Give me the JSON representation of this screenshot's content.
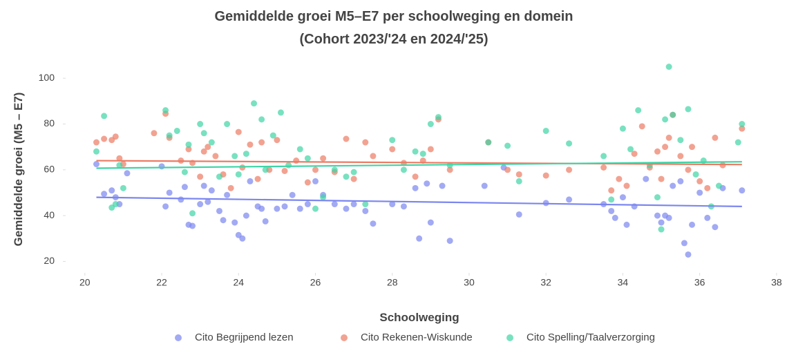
{
  "chart_data": {
    "type": "scatter",
    "title": [
      "Gemiddelde groei M5–E7 per schoolweging en domein",
      "(Cohort 2023/'24 en 2024/'25)"
    ],
    "x_label": "Schoolweging",
    "y_label": "Gemiddelde groei (M5 – E7)",
    "xlim": [
      19.5,
      38.2
    ],
    "ylim": [
      15,
      107
    ],
    "xticks": [
      20,
      22,
      24,
      26,
      28,
      30,
      32,
      34,
      36,
      38
    ],
    "yticks": [
      20,
      40,
      60,
      80,
      100
    ],
    "legend": "bottom",
    "series": [
      {
        "name": "Cito Begrijpend lezen",
        "color": "#7b86f0",
        "x": [
          20.3,
          20.5,
          20.7,
          20.8,
          20.9,
          21.1,
          22,
          22.1,
          22.2,
          22.5,
          22.6,
          22.7,
          22.8,
          23,
          23.1,
          23.2,
          23.3,
          23.5,
          23.6,
          23.7,
          23.9,
          24,
          24.1,
          24.2,
          24.3,
          24.5,
          24.6,
          24.7,
          25,
          25.2,
          25.4,
          25.6,
          25.8,
          26,
          26.2,
          26.5,
          26.8,
          27,
          27.3,
          27.5,
          28,
          28.3,
          28.6,
          28.7,
          28.9,
          29,
          29.3,
          29.5,
          30.4,
          30.9,
          31.3,
          32,
          32.6,
          33.5,
          33.7,
          33.8,
          34,
          34.1,
          34.3,
          34.6,
          34.9,
          35,
          35.1,
          35.2,
          35.3,
          35.5,
          35.6,
          35.7,
          35.8,
          36,
          36.2,
          36.4,
          36.6,
          37.1
        ],
        "values": [
          62.5,
          49.5,
          51,
          48,
          45,
          58.5,
          61.5,
          44,
          50,
          47,
          52.5,
          36,
          35.5,
          45,
          53,
          46,
          51,
          42,
          38,
          49,
          37,
          31.5,
          30,
          40,
          55,
          44,
          43,
          37.5,
          43,
          44,
          49,
          43,
          45,
          55,
          49,
          45,
          43,
          45,
          42,
          36.5,
          45,
          44,
          52,
          30,
          54,
          37,
          53,
          29,
          53,
          61,
          40.5,
          45.5,
          47,
          45,
          42,
          39,
          48,
          36,
          44,
          56,
          40,
          37,
          40,
          39,
          53,
          55,
          28,
          23,
          36,
          50,
          39,
          35,
          52,
          51
        ],
        "trend": {
          "x": [
            20.3,
            37.1
          ],
          "values": [
            48,
            44
          ]
        }
      },
      {
        "name": "Cito Rekenen-Wiskunde",
        "color": "#ec7a63",
        "x": [
          20.3,
          20.5,
          20.7,
          20.8,
          20.9,
          21,
          21.8,
          22.1,
          22.2,
          22.5,
          22.7,
          22.8,
          23,
          23.1,
          23.2,
          23.4,
          23.6,
          23.8,
          24,
          24.1,
          24.3,
          24.5,
          24.6,
          24.8,
          25,
          25.2,
          25.5,
          25.8,
          26,
          26.2,
          26.5,
          26.8,
          27,
          27.3,
          27.5,
          28,
          28.3,
          28.6,
          28.8,
          29,
          29.2,
          29.5,
          30.5,
          31,
          31.3,
          32,
          32.6,
          33.5,
          33.7,
          33.9,
          34.1,
          34.3,
          34.5,
          34.7,
          34.9,
          35,
          35.1,
          35.2,
          35.3,
          35.5,
          35.7,
          35.8,
          36,
          36.2,
          36.4,
          36.6,
          37.1
        ],
        "values": [
          72,
          73.5,
          73,
          74.5,
          65,
          62.5,
          76,
          84.5,
          74,
          64,
          69,
          63,
          57,
          68,
          70,
          66,
          58,
          52,
          76.5,
          61,
          71,
          56,
          72,
          60,
          73,
          59.5,
          64,
          54.5,
          60,
          65,
          59,
          73.5,
          56,
          72,
          66,
          69,
          63,
          57,
          64,
          69,
          82,
          60,
          72,
          60,
          58,
          57.5,
          60,
          61,
          51,
          56,
          53,
          67,
          79,
          61,
          68,
          56,
          70,
          74,
          84,
          66,
          60,
          70,
          55,
          52,
          74,
          62,
          78
        ],
        "trend": {
          "x": [
            20.3,
            37.1
          ],
          "values": [
            64,
            62.3
          ]
        }
      },
      {
        "name": "Cito Spelling/Taalverzorging",
        "color": "#3fd4a5",
        "x": [
          20.3,
          20.5,
          20.7,
          20.8,
          20.9,
          21,
          22.1,
          22.2,
          22.4,
          22.6,
          22.7,
          22.8,
          23,
          23.1,
          23.3,
          23.5,
          23.7,
          23.9,
          24,
          24.2,
          24.4,
          24.6,
          24.7,
          24.9,
          25.1,
          25.3,
          25.6,
          25.8,
          26,
          26.2,
          26.5,
          26.8,
          27,
          27.3,
          28,
          28.3,
          28.6,
          28.8,
          29,
          29.2,
          29.5,
          30.5,
          31,
          31.3,
          32,
          32.6,
          33.5,
          33.7,
          34,
          34.2,
          34.4,
          34.7,
          34.9,
          35,
          35.1,
          35.2,
          35.3,
          35.5,
          35.7,
          35.9,
          36.1,
          36.3,
          36.5,
          37,
          37.1
        ],
        "values": [
          68,
          83.5,
          43.5,
          45,
          62,
          52,
          86,
          75,
          77,
          59,
          71,
          41,
          80,
          76,
          72,
          57,
          80,
          66,
          58,
          67,
          89,
          82,
          60,
          75,
          85,
          62,
          69,
          65,
          43,
          48,
          60,
          57,
          59,
          45,
          73,
          60,
          68,
          67,
          80,
          83,
          62,
          72,
          70.5,
          55,
          77,
          71.5,
          66,
          47,
          78,
          69,
          86,
          62,
          48,
          34,
          82,
          105,
          84,
          73,
          86.5,
          58,
          64,
          44,
          53,
          72,
          80
        ],
        "trend": {
          "x": [
            20.3,
            37.1
          ],
          "values": [
            60.7,
            63.5
          ]
        }
      }
    ]
  }
}
